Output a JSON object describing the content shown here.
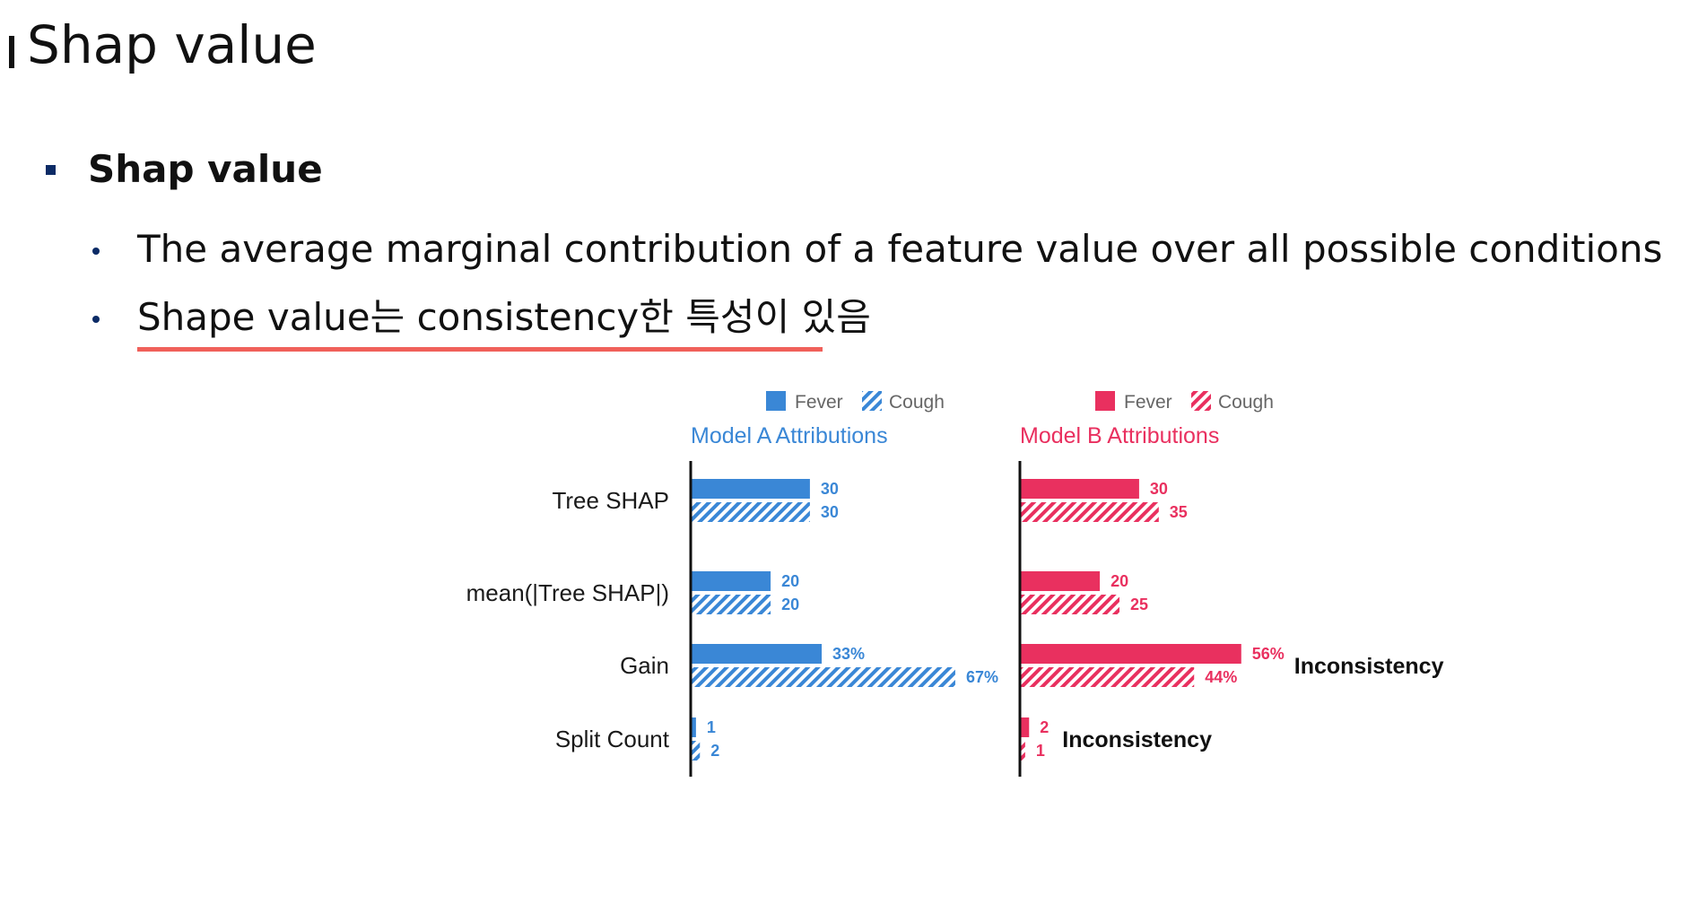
{
  "slide": {
    "title": "Shap value",
    "section_heading": "Shap value",
    "bullets": [
      "The average marginal contribution of a feature value over all possible conditions",
      "Shape value는 consistency한 특성이 있음"
    ]
  },
  "colors": {
    "model_a": "#3a87d6",
    "model_b": "#e9305f",
    "bullet": "#0c2b66",
    "underline": "#f0605a"
  },
  "chart_data": {
    "type": "bar",
    "orientation": "horizontal",
    "categories": [
      "Tree SHAP",
      "mean(|Tree SHAP|)",
      "Gain",
      "Split Count"
    ],
    "panels": [
      {
        "title": "Model A Attributions",
        "color": "#3a87d6",
        "legend": [
          "Fever",
          "Cough"
        ],
        "series": [
          {
            "name": "Fever",
            "pattern": "solid",
            "values": [
              30,
              20,
              33,
              1
            ],
            "labels": [
              "30",
              "20",
              "33%",
              "1"
            ]
          },
          {
            "name": "Cough",
            "pattern": "hatched",
            "values": [
              30,
              20,
              67,
              2
            ],
            "labels": [
              "30",
              "20",
              "67%",
              "2"
            ]
          }
        ],
        "annotations": []
      },
      {
        "title": "Model B Attributions",
        "color": "#e9305f",
        "legend": [
          "Fever",
          "Cough"
        ],
        "series": [
          {
            "name": "Fever",
            "pattern": "solid",
            "values": [
              30,
              20,
              56,
              2
            ],
            "labels": [
              "30",
              "20",
              "56%",
              "2"
            ]
          },
          {
            "name": "Cough",
            "pattern": "hatched",
            "values": [
              35,
              25,
              44,
              1
            ],
            "labels": [
              "35",
              "25",
              "44%",
              "1"
            ]
          }
        ],
        "annotations": [
          {
            "category": "Gain",
            "text": "Inconsistency"
          },
          {
            "category": "Split Count",
            "text": "Inconsistency"
          }
        ]
      }
    ]
  }
}
